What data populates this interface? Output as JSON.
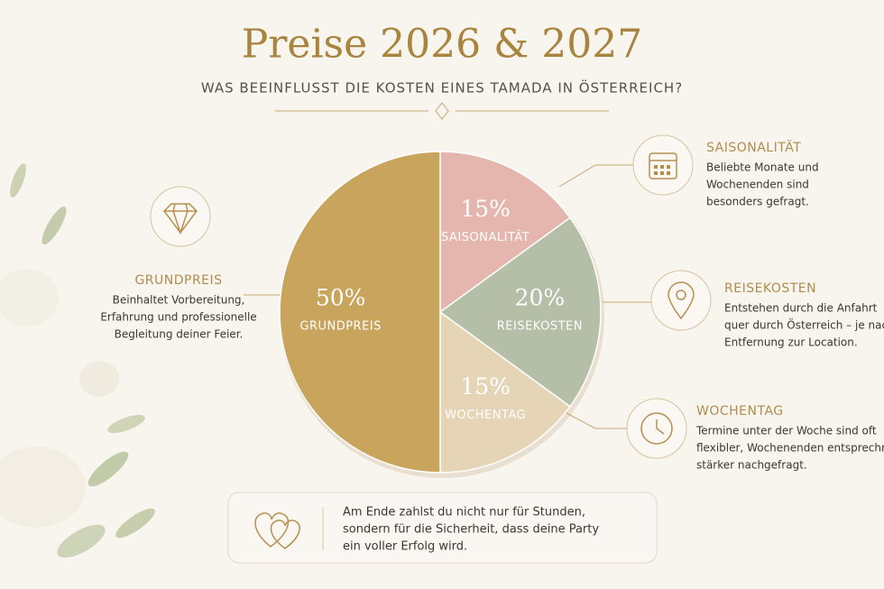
{
  "chart_data": {
    "type": "pie",
    "title": "Preise 2026 & 2027",
    "subtitle": "WAS BEEINFLUSST DIE KOSTEN EINES TAMADA IN ÖSTERREICH?",
    "categories": [
      "SAISONALITÄT",
      "REISEKOSTEN",
      "WOCHENTAG",
      "GRUNDPREIS"
    ],
    "values": [
      15,
      20,
      15,
      50
    ],
    "value_labels": [
      "15%",
      "20%",
      "15%",
      "50%"
    ],
    "colors": [
      "#e4b6ad",
      "#b5bea6",
      "#e6d4b6",
      "#c9a45c"
    ],
    "descriptions": [
      [
        "Beliebte Monate und",
        "Wochenenden sind",
        "besonders gefragt."
      ],
      [
        "Entstehen durch die Anfahrt",
        "quer durch Österreich – je nach",
        "Entfernung zur Location."
      ],
      [
        "Termine unter der Woche sind oft",
        "flexibler, Wochenenden entsprechned",
        "stärker nachgefragt."
      ],
      [
        "Beinhaltet Vorbereitung,",
        "Erfahrung und professionelle",
        "Begleitung deiner Feier."
      ]
    ],
    "note": [
      "Am Ende zahlst du nicht nur für Stunden,",
      "sondern für die Sicherheit, dass deine Party",
      "ein voller Erfolg wird."
    ]
  }
}
